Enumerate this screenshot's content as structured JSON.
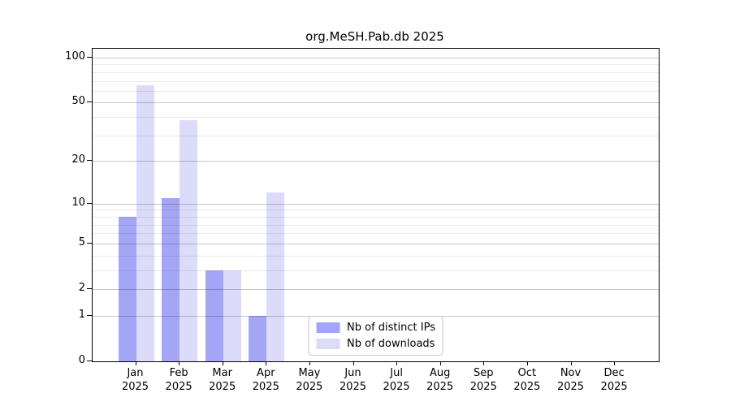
{
  "chart_data": {
    "type": "bar",
    "title": "org.MeSH.Pab.db 2025",
    "categories": [
      "Jan",
      "Feb",
      "Mar",
      "Apr",
      "May",
      "Jun",
      "Jul",
      "Aug",
      "Sep",
      "Oct",
      "Nov",
      "Dec"
    ],
    "year": "2025",
    "xlabel": "",
    "ylabel": "",
    "yscale": "log1p",
    "yticks": [
      0,
      1,
      2,
      5,
      10,
      20,
      50,
      100
    ],
    "minor_yticks": [
      3,
      4,
      6,
      7,
      8,
      9,
      30,
      40,
      60,
      70,
      80,
      90
    ],
    "ylim": [
      0,
      113
    ],
    "grid": true,
    "legend_position": "lower center inside",
    "series": [
      {
        "name": "Nb of distinct IPs",
        "color": "#a5a5f5",
        "values": [
          8,
          11,
          3,
          1,
          0,
          0,
          0,
          0,
          0,
          0,
          0,
          0
        ]
      },
      {
        "name": "Nb of downloads",
        "color": "#dcdcfa",
        "values": [
          65,
          38,
          3,
          12,
          0,
          0,
          0,
          0,
          0,
          0,
          0,
          0
        ]
      }
    ],
    "colors": {
      "axis": "#000000",
      "major_grid": "#c9c9c9",
      "minor_grid": "#ededed",
      "background": "#ffffff"
    }
  }
}
